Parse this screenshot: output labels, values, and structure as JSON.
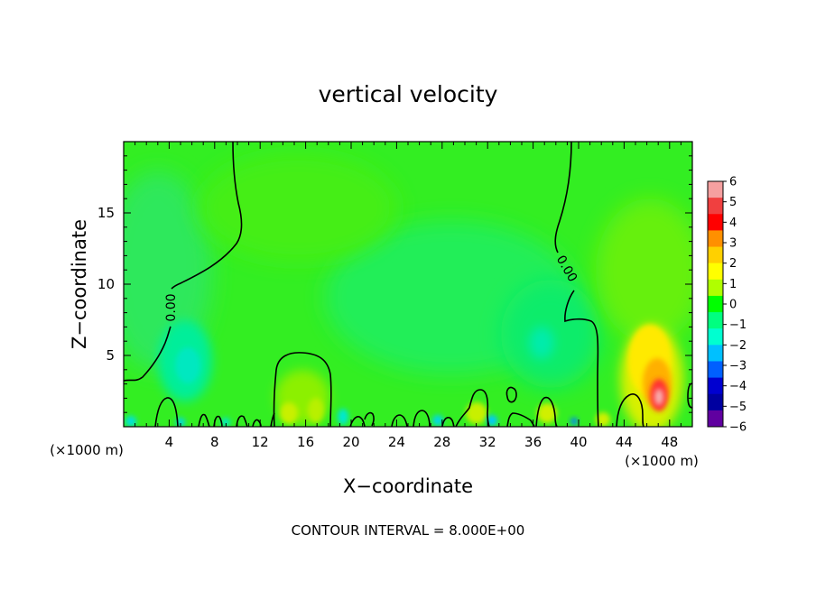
{
  "chart_data": {
    "type": "heatmap",
    "title": "vertical velocity",
    "xlabel": "X−coordinate",
    "ylabel": "Z−coordinate",
    "x_units": "(×1000 m)",
    "x_units_right": "(×1000 m)",
    "xlim": [
      0,
      50
    ],
    "ylim": [
      0,
      20
    ],
    "x_ticks": [
      4,
      8,
      12,
      16,
      20,
      24,
      28,
      32,
      36,
      40,
      44,
      48
    ],
    "x_tick_labels": [
      "4",
      "8",
      "12",
      "16",
      "20",
      "24",
      "28",
      "32",
      "36",
      "40",
      "44",
      "48"
    ],
    "y_ticks": [
      5,
      10,
      15
    ],
    "y_tick_labels": [
      "5",
      "10",
      "15"
    ],
    "colorbar": {
      "levels": [
        6,
        5,
        4,
        3,
        2,
        1,
        0,
        -1,
        -2,
        -3,
        -4,
        -5,
        -6
      ],
      "labels": [
        "6",
        "5",
        "4",
        "3",
        "2",
        "1",
        "0",
        "−1",
        "−2",
        "−3",
        "−4",
        "−5",
        "−6"
      ],
      "colors": [
        "#f5a0a0",
        "#f04040",
        "#ff0000",
        "#ff9000",
        "#ffd000",
        "#ffff00",
        "#b0ff00",
        "#00ff00",
        "#00ff80",
        "#00ffd0",
        "#00c0ff",
        "#0060ff",
        "#0000d0",
        "#0000a0",
        "#6000a0"
      ]
    },
    "contour_label": "0.00",
    "contour_interval_text": "CONTOUR INTERVAL = 8.000E+00",
    "features": [
      {
        "kind": "updraft",
        "x": 46.5,
        "z": 2.5,
        "value": 5.5
      },
      {
        "kind": "updraft",
        "x": 46.0,
        "z": 5.5,
        "value": 2
      },
      {
        "kind": "updraft",
        "x": 15.0,
        "z": 1.5,
        "value": 1.5
      },
      {
        "kind": "updraft",
        "x": 31.0,
        "z": 1.0,
        "value": 1.5
      },
      {
        "kind": "updraft",
        "x": 37.5,
        "z": 1.0,
        "value": 1.5
      },
      {
        "kind": "downdraft",
        "x": 5.0,
        "z": 4.0,
        "value": -1.5
      },
      {
        "kind": "downdraft",
        "x": 37.0,
        "z": 6.0,
        "value": -1.2
      },
      {
        "kind": "downdraft",
        "x": 30.0,
        "z": 7.0,
        "value": -0.6
      }
    ]
  }
}
